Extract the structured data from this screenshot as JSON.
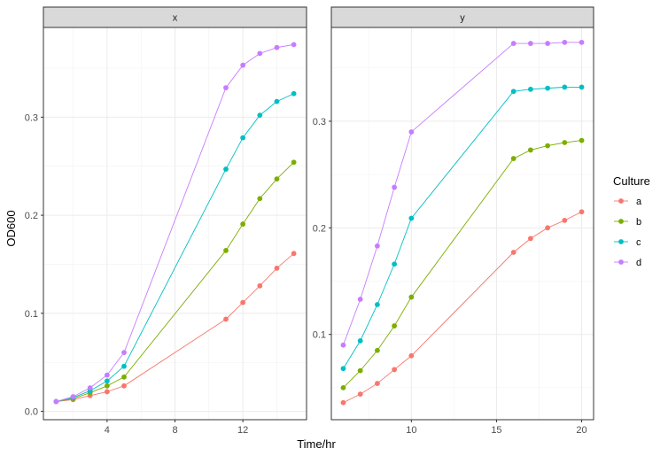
{
  "chart_data": {
    "type": "line",
    "xlabel": "Time/hr",
    "ylabel": "OD600",
    "legend": {
      "title": "Culture",
      "entries": [
        "a",
        "b",
        "c",
        "d"
      ],
      "colors": [
        "#F8766D",
        "#7CAE00",
        "#00BFC4",
        "#C77CFF"
      ],
      "position": "right"
    },
    "facets": [
      {
        "strip": "x",
        "xlim": [
          0.25,
          15.75
        ],
        "ylim": [
          -0.0085,
          0.3915
        ],
        "xticks": [
          4,
          8,
          12
        ],
        "xtick_labels": [
          "4",
          "8",
          "12"
        ],
        "yticks": [
          0.0,
          0.1,
          0.2,
          0.3
        ],
        "ytick_labels": [
          "0.0",
          "0.1",
          "0.2",
          "0.3"
        ],
        "x": [
          1,
          2,
          3,
          4,
          5,
          11,
          12,
          13,
          14,
          15
        ],
        "series": [
          {
            "name": "a",
            "values": [
              0.01,
              0.012,
              0.016,
              0.02,
              0.026,
              0.094,
              0.111,
              0.128,
              0.146,
              0.161
            ]
          },
          {
            "name": "b",
            "values": [
              0.01,
              0.013,
              0.019,
              0.026,
              0.035,
              0.164,
              0.191,
              0.217,
              0.237,
              0.254
            ]
          },
          {
            "name": "c",
            "values": [
              0.01,
              0.014,
              0.021,
              0.031,
              0.046,
              0.247,
              0.279,
              0.302,
              0.316,
              0.324
            ]
          },
          {
            "name": "d",
            "values": [
              0.01,
              0.015,
              0.024,
              0.037,
              0.06,
              0.33,
              0.353,
              0.365,
              0.371,
              0.374
            ]
          }
        ]
      },
      {
        "strip": "y",
        "xlim": [
          5.3,
          20.7
        ],
        "ylim": [
          0.02,
          0.388
        ],
        "xticks": [
          10,
          15,
          20
        ],
        "xtick_labels": [
          "10",
          "15",
          "20"
        ],
        "yticks": [
          0.1,
          0.2,
          0.3
        ],
        "ytick_labels": [
          "0.1",
          "0.2",
          "0.3"
        ],
        "x": [
          6,
          7,
          8,
          9,
          10,
          16,
          17,
          18,
          19,
          20
        ],
        "series": [
          {
            "name": "a",
            "values": [
              0.036,
              0.044,
              0.054,
              0.067,
              0.08,
              0.177,
              0.19,
              0.2,
              0.207,
              0.215
            ]
          },
          {
            "name": "b",
            "values": [
              0.05,
              0.066,
              0.085,
              0.108,
              0.135,
              0.265,
              0.273,
              0.277,
              0.28,
              0.282
            ]
          },
          {
            "name": "c",
            "values": [
              0.068,
              0.094,
              0.128,
              0.166,
              0.209,
              0.328,
              0.33,
              0.331,
              0.332,
              0.332
            ]
          },
          {
            "name": "d",
            "values": [
              0.09,
              0.133,
              0.183,
              0.238,
              0.29,
              0.373,
              0.373,
              0.373,
              0.374,
              0.374
            ]
          }
        ]
      }
    ]
  }
}
